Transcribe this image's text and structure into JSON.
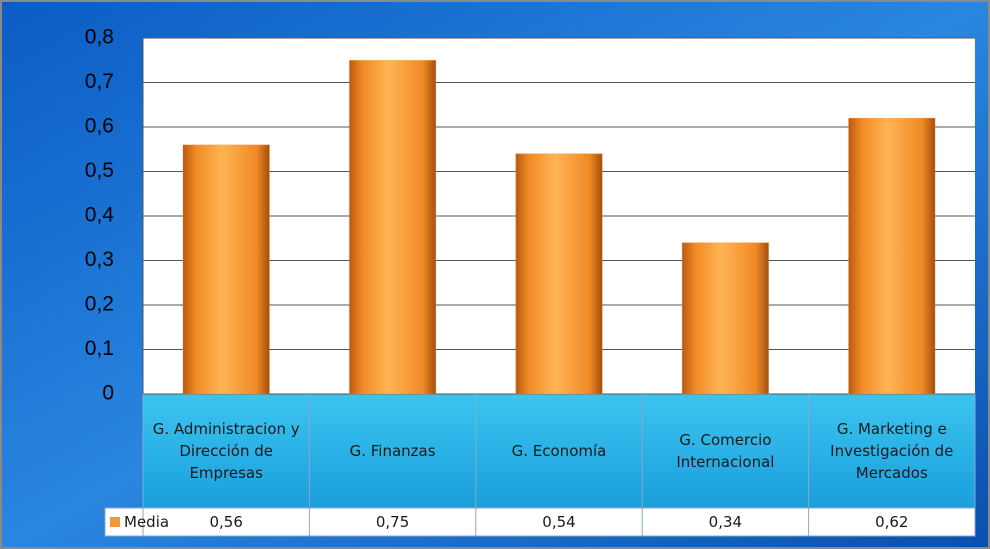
{
  "chart_data": {
    "type": "bar",
    "categories": [
      "G. Administracion y Dirección de Empresas",
      "G. Finanzas",
      "G. Economía",
      "G. Comercio Internacional",
      "G. Marketing e Investigación de Mercados"
    ],
    "series": [
      {
        "name": "Media",
        "color": "#f49a35",
        "values": [
          0.56,
          0.75,
          0.54,
          0.34,
          0.62
        ],
        "value_labels": [
          "0,56",
          "0,75",
          "0,54",
          "0,34",
          "0,62"
        ]
      }
    ],
    "ylim": [
      0,
      0.8
    ],
    "yticks": [
      0,
      {
        "value": 0.1,
        "label": "0,1"
      },
      {
        "value": 0.2,
        "label": "0,2"
      },
      {
        "value": 0.3,
        "label": "0,3"
      },
      {
        "value": 0.4,
        "label": "0,4"
      },
      {
        "value": 0.5,
        "label": "0,5"
      },
      {
        "value": 0.6,
        "label": "0,6"
      },
      {
        "value": 0.7,
        "label": "0,7"
      },
      {
        "value": 0.8,
        "label": "0,8"
      }
    ],
    "grid": true,
    "data_table": true
  }
}
